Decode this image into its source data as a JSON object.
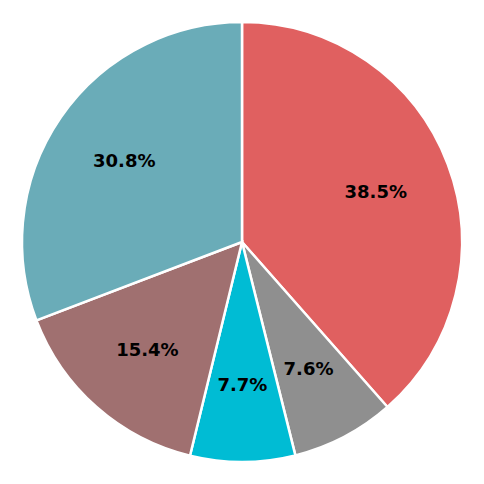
{
  "chart_data": {
    "type": "pie",
    "values": [
      38.5,
      7.6,
      7.7,
      15.4,
      30.8
    ],
    "value_labels": [
      "38.5%",
      "7.6%",
      "7.7%",
      "15.4%",
      "30.8%"
    ],
    "colors": [
      "#e06060",
      "#8f8f8f",
      "#00bcd4",
      "#a07070",
      "#6aacb8"
    ],
    "data_labels": true
  }
}
